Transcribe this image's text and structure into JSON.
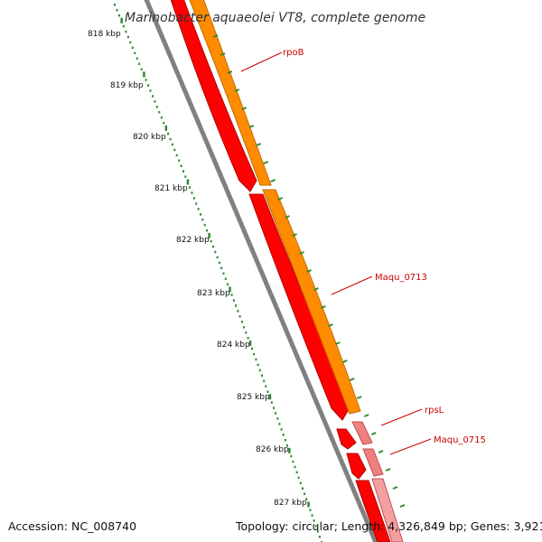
{
  "title": "Marinobacter aquaeolei VT8, complete genome",
  "accession": "Accession: NC_008740",
  "summary": "Topology: circular; Length: 4,326,849 bp; Genes: 3,921",
  "ticks": [
    "818 kbp",
    "819 kbp",
    "820 kbp",
    "821 kbp",
    "822 kbp",
    "823 kbp",
    "824 kbp",
    "825 kbp",
    "826 kbp",
    "827 kbp"
  ],
  "genes": [
    {
      "label": "rpoB",
      "color": "#ff7f00"
    },
    {
      "label": "Maqu_0713",
      "color": "#ff7f00"
    },
    {
      "label": "rpsL",
      "color": "#ff0000"
    },
    {
      "label": "Maqu_0715",
      "color": "#ff9999"
    }
  ],
  "colors": {
    "cds_forward": "#ff0000",
    "cds_orange": "#ff8c00",
    "cds_pink": "#f08080",
    "backbone": "#808080",
    "ticks": "#2e8b2e",
    "label_line": "#cc0000",
    "label_text": "#cc0000"
  }
}
